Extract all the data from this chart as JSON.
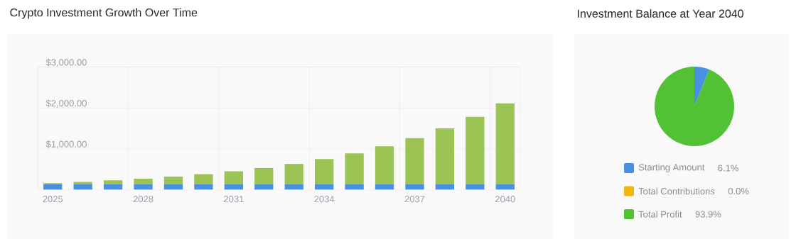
{
  "chart_data": [
    {
      "type": "bar",
      "title": "Crypto Investment Growth Over Time",
      "categories": [
        "2025",
        null,
        null,
        "2028",
        null,
        null,
        "2031",
        null,
        null,
        "2034",
        null,
        null,
        "2037",
        null,
        null,
        "2040"
      ],
      "stacked": true,
      "series": [
        {
          "color": "#4a90e2",
          "values": [
            130,
            130,
            130,
            130,
            130,
            130,
            130,
            130,
            130,
            130,
            130,
            130,
            130,
            130,
            130,
            130
          ]
        },
        {
          "color": "#9bc454",
          "values": [
            30,
            60,
            100,
            140,
            190,
            250,
            320,
            400,
            500,
            620,
            760,
            930,
            1130,
            1370,
            1650,
            1980
          ]
        }
      ],
      "ylim": [
        0,
        3000
      ],
      "yticks": [
        {
          "value": 1000,
          "label": "$1,000.00"
        },
        {
          "value": 2000,
          "label": "$2,000.00"
        },
        {
          "value": 3000,
          "label": "$3,000.00"
        }
      ],
      "grid": true
    },
    {
      "type": "pie",
      "title": "Investment Balance at Year 2040",
      "categories": [
        "Starting Amount",
        "Total Contributions",
        "Total Profit"
      ],
      "values": [
        6.1,
        0.0,
        93.9
      ],
      "colors": [
        "#4a90e2",
        "#f1b80b",
        "#52c234"
      ],
      "value_labels": [
        "6.1%",
        "0.0%",
        "93.9%"
      ],
      "legend": "bottom"
    }
  ]
}
